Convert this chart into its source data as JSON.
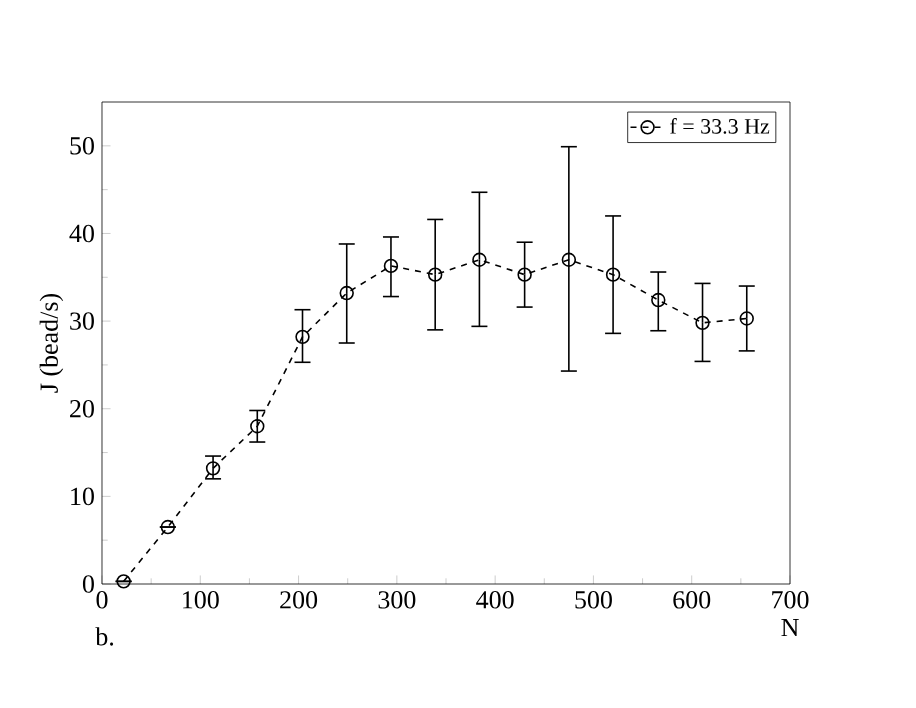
{
  "chart_data": {
    "type": "line",
    "xlabel": "N",
    "ylabel": "J (bead/s)",
    "annotations": [
      "b."
    ],
    "x": [
      22,
      67,
      113,
      158,
      204,
      249,
      294,
      339,
      384,
      430,
      475,
      520,
      566,
      611,
      656
    ],
    "series": [
      {
        "name": "f = 33.3 Hz",
        "color": "#000000",
        "values": [
          0.3,
          6.5,
          13.2,
          18,
          28.2,
          33.2,
          36.3,
          35.3,
          37,
          35.3,
          37,
          35.3,
          32.4,
          29.8,
          30.3
        ],
        "errors": [
          null,
          null,
          [
            12,
            14.6
          ],
          [
            16.2,
            19.8
          ],
          [
            25.3,
            31.3
          ],
          [
            27.5,
            38.8
          ],
          [
            32.8,
            39.6
          ],
          [
            29,
            41.6
          ],
          [
            29.4,
            44.7
          ],
          [
            31.6,
            39
          ],
          [
            24.3,
            49.9
          ],
          [
            28.6,
            42
          ],
          [
            28.9,
            35.6
          ],
          [
            25.4,
            34.3
          ],
          [
            26.6,
            34
          ]
        ]
      }
    ],
    "xlim": [
      0,
      700
    ],
    "ylim": [
      0,
      55
    ],
    "xticks": [
      0,
      100,
      200,
      300,
      400,
      500,
      600,
      700
    ],
    "yticks": [
      0,
      10,
      20,
      30,
      40,
      50
    ],
    "grid": false,
    "legend": "top right",
    "marker": "circle",
    "line_style": "dashed"
  }
}
